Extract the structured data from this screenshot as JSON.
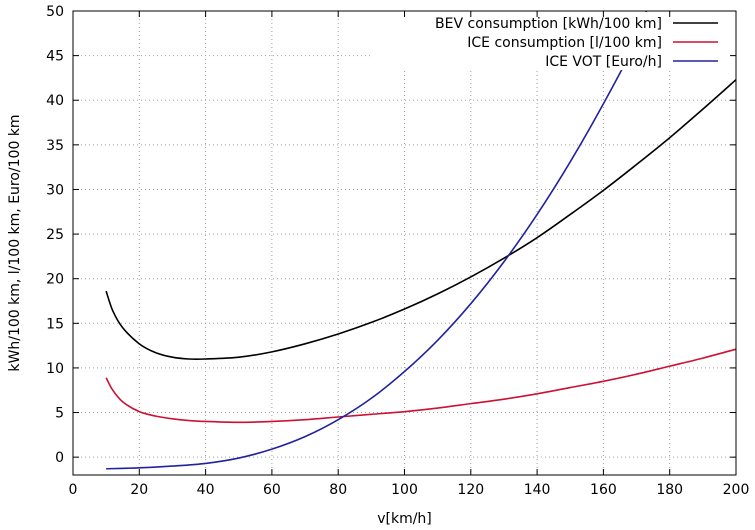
{
  "chart_data": {
    "type": "line",
    "xlabel": "v[km/h]",
    "ylabel": "kWh/100 km, l/100 km, Euro/100 km",
    "xlim": [
      0,
      200
    ],
    "ylim": [
      -2,
      50
    ],
    "xticks": [
      0,
      20,
      40,
      60,
      80,
      100,
      120,
      140,
      160,
      180,
      200
    ],
    "yticks": [
      0,
      5,
      10,
      15,
      20,
      25,
      30,
      35,
      40,
      45,
      50
    ],
    "grid": true,
    "legend_position": "top-right",
    "series": [
      {
        "name": "BEV consumption [kWh/100 km]",
        "color": "#000000",
        "x": [
          10,
          12,
          15,
          20,
          25,
          30,
          35,
          40,
          50,
          60,
          70,
          80,
          90,
          100,
          110,
          120,
          130,
          140,
          150,
          160,
          170,
          180,
          190,
          200
        ],
        "y": [
          18.6,
          16.4,
          14.5,
          12.7,
          11.7,
          11.2,
          11.0,
          11.0,
          11.2,
          11.8,
          12.7,
          13.8,
          15.1,
          16.6,
          18.3,
          20.2,
          22.3,
          24.6,
          27.2,
          29.9,
          32.8,
          35.8,
          39.0,
          42.3
        ]
      },
      {
        "name": "ICE consumption [l/100 km]",
        "color": "#cc1133",
        "x": [
          10,
          12,
          15,
          20,
          25,
          30,
          35,
          40,
          50,
          60,
          70,
          80,
          90,
          100,
          110,
          120,
          130,
          140,
          150,
          160,
          170,
          180,
          190,
          200
        ],
        "y": [
          8.9,
          7.5,
          6.2,
          5.1,
          4.6,
          4.3,
          4.1,
          4.0,
          3.9,
          4.0,
          4.2,
          4.5,
          4.8,
          5.1,
          5.5,
          6.0,
          6.5,
          7.1,
          7.8,
          8.5,
          9.3,
          10.2,
          11.1,
          12.1
        ]
      },
      {
        "name": "ICE VOT [Euro/h]",
        "color": "#22229e",
        "x": [
          10,
          20,
          30,
          40,
          50,
          60,
          70,
          80,
          90,
          100,
          110,
          120,
          130,
          140,
          150,
          160,
          170,
          173
        ],
        "y": [
          -1.3,
          -1.2,
          -1.0,
          -0.7,
          -0.1,
          0.9,
          2.3,
          4.2,
          6.6,
          9.6,
          13.1,
          17.2,
          21.9,
          27.2,
          33.1,
          39.6,
          46.7,
          50.0
        ]
      }
    ]
  }
}
